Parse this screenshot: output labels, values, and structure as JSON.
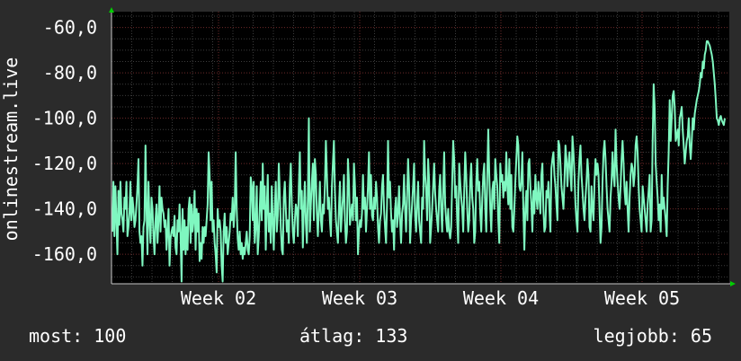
{
  "chart_data": {
    "type": "line",
    "title": "",
    "xlabel": "",
    "ylabel": "onlinestream.live",
    "x_tick_labels": [
      "Week 02",
      "Week 03",
      "Week 04",
      "Week 05"
    ],
    "y_tick_labels": [
      "-60,0",
      "-80,0",
      "-100,0",
      "-120,0",
      "-140,0",
      "-160,0"
    ],
    "y_ticks": [
      -60,
      -80,
      -100,
      -120,
      -140,
      -160
    ],
    "ylim": [
      -173,
      -53
    ],
    "grid": true,
    "legend": "none",
    "series": [
      {
        "color": "#7ff7c0",
        "values": [
          -150,
          -128,
          -152,
          -130,
          -145,
          -160,
          -132,
          -147,
          -128,
          -142,
          -145,
          -150,
          -135,
          -140,
          -128,
          -152,
          -148,
          -142,
          -128,
          -145,
          -135,
          -140,
          -148,
          -145,
          -138,
          -130,
          -118,
          -150,
          -155,
          -152,
          -165,
          -148,
          -145,
          -112,
          -140,
          -160,
          -128,
          -145,
          -155,
          -135,
          -140,
          -152,
          -160,
          -145,
          -138,
          -155,
          -145,
          -130,
          -150,
          -135,
          -140,
          -142,
          -148,
          -145,
          -158,
          -150,
          -140,
          -165,
          -153,
          -150,
          -148,
          -152,
          -143,
          -157,
          -160,
          -145,
          -150,
          -138,
          -152,
          -172,
          -140,
          -158,
          -145,
          -160,
          -148,
          -158,
          -140,
          -135,
          -155,
          -138,
          -150,
          -145,
          -132,
          -158,
          -140,
          -150,
          -142,
          -163,
          -155,
          -162,
          -148,
          -155,
          -148,
          -152,
          -145,
          -138,
          -115,
          -125,
          -145,
          -128,
          -150,
          -145,
          -155,
          -160,
          -168,
          -140,
          -148,
          -145,
          -150,
          -165,
          -172,
          -150,
          -142,
          -155,
          -148,
          -160,
          -155,
          -150,
          -142,
          -145,
          -135,
          -148,
          -140,
          -115,
          -140,
          -153,
          -158,
          -150,
          -160,
          -155,
          -162,
          -157,
          -160,
          -155,
          -150,
          -158,
          -160,
          -152,
          -126,
          -130,
          -145,
          -128,
          -155,
          -148,
          -130,
          -160,
          -152,
          -140,
          -128,
          -145,
          -120,
          -140,
          -130,
          -158,
          -140,
          -125,
          -150,
          -142,
          -155,
          -130,
          -145,
          -158,
          -140,
          -128,
          -150,
          -143,
          -120,
          -133,
          -148,
          -158,
          -160,
          -135,
          -128,
          -140,
          -150,
          -145,
          -155,
          -130,
          -120,
          -138,
          -150,
          -155,
          -145,
          -138,
          -140,
          -152,
          -130,
          -115,
          -140,
          -132,
          -157,
          -140,
          -128,
          -146,
          -155,
          -135,
          -100,
          -150,
          -138,
          -128,
          -120,
          -145,
          -118,
          -125,
          -142,
          -152,
          -140,
          -128,
          -145,
          -150,
          -138,
          -142,
          -130,
          -110,
          -125,
          -140,
          -135,
          -145,
          -152,
          -130,
          -120,
          -110,
          -132,
          -145,
          -150,
          -155,
          -140,
          -128,
          -150,
          -142,
          -135,
          -125,
          -145,
          -155,
          -150,
          -118,
          -128,
          -147,
          -142,
          -138,
          -145,
          -120,
          -130,
          -145,
          -135,
          -160,
          -150,
          -145,
          -148,
          -142,
          -125,
          -140,
          -135,
          -150,
          -140,
          -130,
          -115,
          -140,
          -125,
          -143,
          -145,
          -135,
          -140,
          -128,
          -135,
          -148,
          -155,
          -145,
          -142,
          -130,
          -125,
          -140,
          -148,
          -155,
          -138,
          -110,
          -135,
          -128,
          -142,
          -150,
          -145,
          -158,
          -140,
          -135,
          -148,
          -142,
          -130,
          -145,
          -155,
          -142,
          -138,
          -125,
          -140,
          -150,
          -135,
          -118,
          -130,
          -155,
          -145,
          -138,
          -130,
          -120,
          -143,
          -150,
          -138,
          -128,
          -145,
          -150,
          -155,
          -135,
          -140,
          -110,
          -125,
          -132,
          -145,
          -118,
          -128,
          -155,
          -148,
          -140,
          -130,
          -120,
          -133,
          -140,
          -145,
          -150,
          -132,
          -125,
          -140,
          -150,
          -132,
          -115,
          -138,
          -145,
          -150,
          -140,
          -150,
          -153,
          -148,
          -128,
          -110,
          -118,
          -135,
          -130,
          -145,
          -155,
          -120,
          -128,
          -135,
          -140,
          -150,
          -132,
          -115,
          -125,
          -140,
          -150,
          -145,
          -128,
          -120,
          -135,
          -140,
          -155,
          -150,
          -128,
          -118,
          -132,
          -128,
          -142,
          -150,
          -136,
          -125,
          -120,
          -140,
          -150,
          -125,
          -105,
          -125,
          -140,
          -150,
          -132,
          -128,
          -140,
          -118,
          -125,
          -130,
          -145,
          -155,
          -120,
          -128,
          -125,
          -135,
          -128,
          -132,
          -115,
          -130,
          -138,
          -118,
          -140,
          -125,
          -148,
          -150,
          -140,
          -128,
          -118,
          -108,
          -112,
          -130,
          -132,
          -128,
          -115,
          -140,
          -158,
          -140,
          -132,
          -145,
          -120,
          -118,
          -130,
          -138,
          -150,
          -132,
          -142,
          -125,
          -135,
          -140,
          -128,
          -135,
          -142,
          -125,
          -120,
          -140,
          -150,
          -148,
          -132,
          -135,
          -128,
          -140,
          -150,
          -122,
          -118,
          -115,
          -125,
          -130,
          -138,
          -145,
          -110,
          -112,
          -120,
          -130,
          -135,
          -140,
          -128,
          -112,
          -118,
          -130,
          -120,
          -115,
          -125,
          -132,
          -108,
          -115,
          -125,
          -138,
          -145,
          -150,
          -128,
          -118,
          -112,
          -125,
          -132,
          -140,
          -145,
          -135,
          -128,
          -118,
          -125,
          -148,
          -150,
          -130,
          -140,
          -145,
          -128,
          -118,
          -125,
          -120,
          -125,
          -140,
          -155,
          -148,
          -128,
          -115,
          -110,
          -118,
          -130,
          -140,
          -145,
          -150,
          -135,
          -128,
          -115,
          -125,
          -130,
          -105,
          -120,
          -128,
          -135,
          -140,
          -130,
          -118,
          -110,
          -120,
          -132,
          -138,
          -128,
          -140,
          -150,
          -135,
          -125,
          -120,
          -122,
          -130,
          -125,
          -112,
          -108,
          -115,
          -130,
          -140,
          -145,
          -150,
          -130,
          -135,
          -140,
          -145,
          -150,
          -138,
          -132,
          -125,
          -150,
          -145,
          -110,
          -85,
          -95,
          -120,
          -128,
          -135,
          -145,
          -138,
          -150,
          -125,
          -140,
          -135,
          -140,
          -145,
          -152,
          -130,
          -115,
          -92,
          -110,
          -100,
          -90,
          -88,
          -95,
          -110,
          -108,
          -105,
          -112,
          -100,
          -98,
          -95,
          -105,
          -112,
          -120,
          -115,
          -110,
          -108,
          -100,
          -112,
          -118,
          -110,
          -100,
          -105,
          -98,
          -95,
          -92,
          -90,
          -88,
          -85,
          -80,
          -82,
          -75,
          -78,
          -72,
          -70,
          -66,
          -66,
          -67,
          -68,
          -70,
          -72,
          -75,
          -80,
          -85,
          -92,
          -100,
          -101,
          -103,
          -100,
          -99,
          -101,
          -102,
          -103,
          -100
        ]
      }
    ]
  },
  "footer": {
    "most": "most: 100",
    "avg": "átlag: 133",
    "best": "legjobb: 65"
  }
}
